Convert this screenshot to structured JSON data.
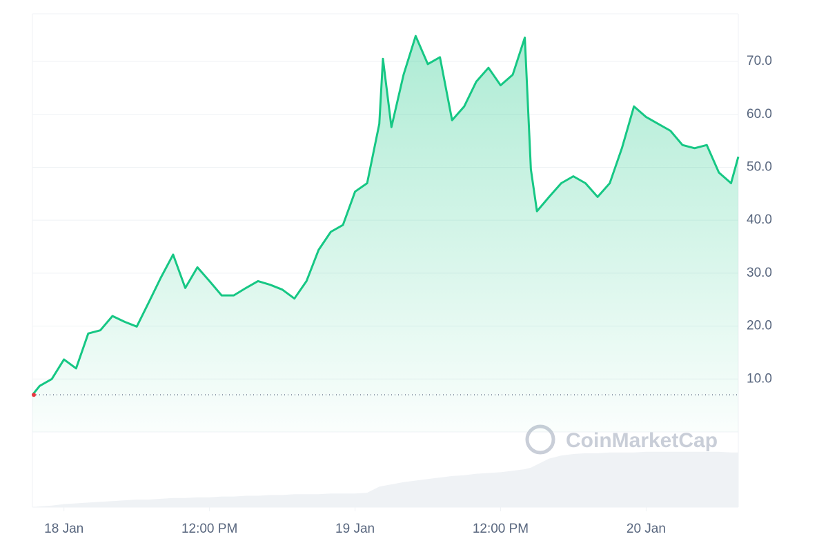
{
  "chart_data": {
    "type": "area",
    "watermark": "CoinMarketCap",
    "x": [
      -2.6,
      -2,
      -1,
      0,
      1,
      2,
      3,
      4,
      5,
      6,
      7,
      8,
      9,
      10,
      11,
      12,
      13,
      14,
      15,
      16,
      17,
      18,
      19,
      20,
      21,
      22,
      23,
      24,
      25,
      26,
      26.3,
      27,
      28,
      29,
      30,
      31,
      32,
      33,
      34,
      35,
      36,
      37,
      38,
      38.5,
      39,
      40,
      41,
      42,
      43,
      44,
      45,
      46,
      47,
      48,
      49,
      50,
      51,
      52,
      53,
      54,
      55,
      55.6
    ],
    "series": [
      {
        "color": "#16c784",
        "values": [
          7.0,
          8.7,
          10,
          13.7,
          12,
          18.6,
          19.2,
          21.9,
          20.8,
          19.9,
          24.5,
          29.2,
          33.5,
          27.2,
          31.1,
          28.5,
          25.8,
          25.8,
          27.2,
          28.5,
          27.8,
          26.9,
          25.2,
          28.5,
          34.4,
          37.8,
          39.1,
          45.4,
          47,
          58.2,
          70.5,
          57.6,
          67.5,
          74.8,
          69.5,
          70.8,
          58.9,
          61.5,
          66.2,
          68.8,
          65.5,
          67.5,
          74.5,
          49.6,
          41.7,
          44.4,
          47,
          48.3,
          47,
          44.4,
          47,
          53.6,
          61.5,
          59.5,
          58.2,
          56.9,
          54.2,
          53.6,
          54.2,
          49,
          47,
          52
        ]
      },
      {
        "color": "#eff2f5",
        "axis": "y2",
        "values": [
          0,
          1,
          2,
          4,
          5,
          6,
          7,
          8,
          9,
          10,
          10,
          11,
          12,
          12,
          13,
          13,
          14,
          14,
          15,
          15,
          16,
          16,
          17,
          17,
          17,
          18,
          18,
          18,
          19,
          27,
          28,
          30,
          33,
          35,
          37,
          39,
          41,
          42,
          44,
          45,
          46,
          48,
          50,
          52,
          56,
          64,
          68,
          70,
          71,
          71,
          72,
          72,
          72,
          73,
          73,
          73,
          73,
          73,
          73,
          73,
          72,
          72
        ]
      }
    ],
    "baseline": 7,
    "xlim": [
      -2.6,
      55.6
    ],
    "xticks": [
      {
        "value": 0,
        "label": "18 Jan"
      },
      {
        "value": 12,
        "label": "12:00 PM"
      },
      {
        "value": 24,
        "label": "19 Jan"
      },
      {
        "value": 36,
        "label": "12:00 PM"
      },
      {
        "value": 48,
        "label": "20 Jan"
      }
    ],
    "ylim": [
      0,
      79
    ],
    "yticks": [
      {
        "value": 10,
        "label": "10.0"
      },
      {
        "value": 20,
        "label": "20.0"
      },
      {
        "value": 30,
        "label": "30.0"
      },
      {
        "value": 40,
        "label": "40.0"
      },
      {
        "value": 50,
        "label": "50.0"
      },
      {
        "value": 60,
        "label": "60.0"
      },
      {
        "value": 70,
        "label": "70.0"
      }
    ],
    "y2lim": [
      0,
      100
    ],
    "grid": true
  }
}
